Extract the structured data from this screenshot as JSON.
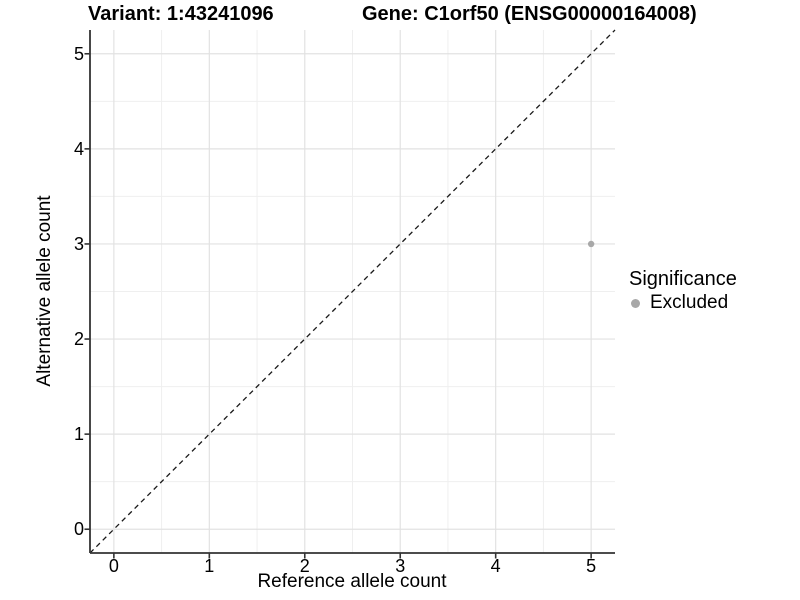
{
  "header": {
    "variant_title": "Variant: 1:43241096",
    "gene_title": "Gene: C1orf50 (ENSG00000164008)"
  },
  "chart_data": {
    "type": "scatter",
    "title_left": "Variant: 1:43241096",
    "title_right": "Gene: C1orf50 (ENSG00000164008)",
    "xlabel": "Reference allele count",
    "ylabel": "Alternative allele count",
    "xlim": [
      -0.25,
      5.25
    ],
    "ylim": [
      -0.25,
      5.25
    ],
    "x_ticks": [
      0,
      1,
      2,
      3,
      4,
      5
    ],
    "y_ticks": [
      0,
      1,
      2,
      3,
      4,
      5
    ],
    "x_minor_ticks": [
      0.5,
      1.5,
      2.5,
      3.5,
      4.5
    ],
    "y_minor_ticks": [
      0.5,
      1.5,
      2.5,
      3.5,
      4.5
    ],
    "grid": "major+minor",
    "identity_line": {
      "slope": 1,
      "intercept": 0,
      "linestyle": "dashed",
      "color": "#1a1a1a"
    },
    "series": [
      {
        "name": "Excluded",
        "color": "#a8a8a8",
        "points": [
          {
            "x": 5,
            "y": 3
          }
        ]
      }
    ],
    "legend": {
      "title": "Significance",
      "position": "right",
      "items": [
        {
          "label": "Excluded",
          "color": "#a8a8a8"
        }
      ]
    },
    "colors": {
      "grid_major": "#e2e2e2",
      "grid_minor": "#efefef",
      "axis_line": "#333333",
      "point": "#a8a8a8",
      "background": "#ffffff"
    }
  }
}
